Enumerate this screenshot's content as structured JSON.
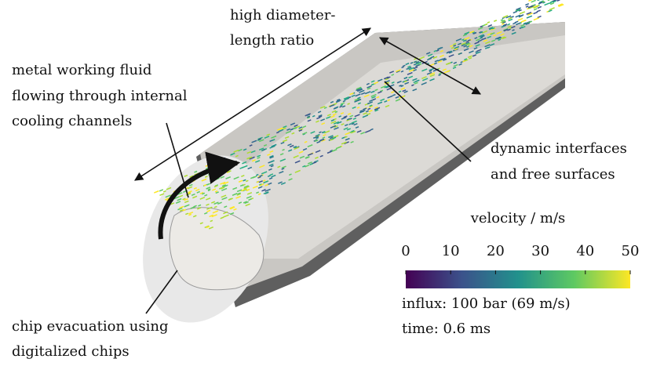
{
  "annotations": {
    "ratio": [
      "high diameter-",
      "length ratio"
    ],
    "fluid": [
      "metal working fluid",
      "flowing through internal",
      "cooling channels"
    ],
    "interfaces": [
      "dynamic interfaces",
      "and free surfaces"
    ],
    "chips": [
      "chip evacuation using",
      "digitalized chips"
    ]
  },
  "colorbar": {
    "label": "velocity / m/s",
    "lim": [
      0,
      50
    ],
    "ticks": [
      0,
      10,
      20,
      30,
      40,
      50
    ]
  },
  "info": [
    "influx: 100 bar (69 m/s)",
    "time: 0.6 ms"
  ]
}
